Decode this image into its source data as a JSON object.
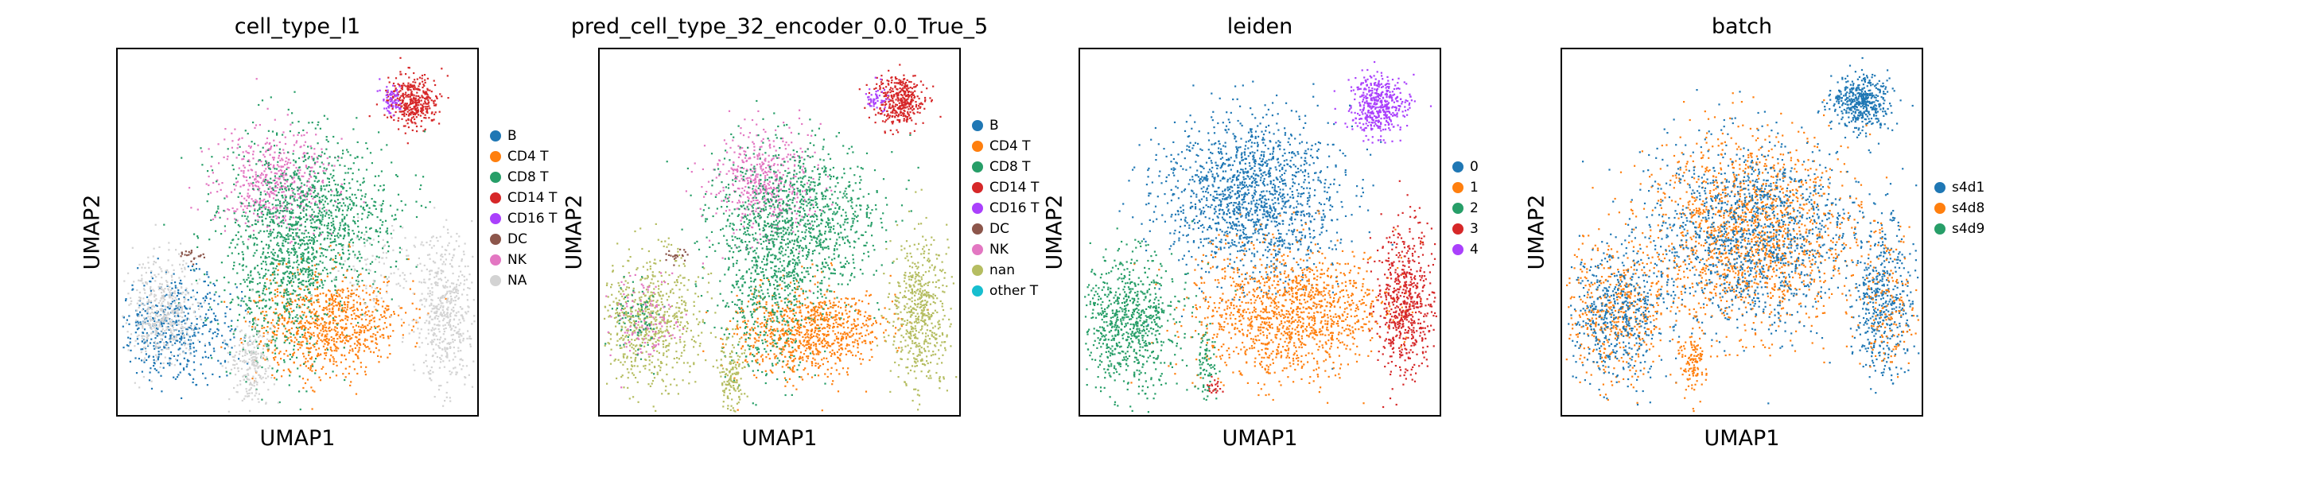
{
  "chart_data": [
    {
      "type": "scatter",
      "title": "cell_type_l1",
      "xlabel": "UMAP1",
      "ylabel": "UMAP2",
      "legend_position": "right",
      "categories": [
        {
          "name": "B",
          "color": "#1f77b4"
        },
        {
          "name": "CD4 T",
          "color": "#ff7f0e"
        },
        {
          "name": "CD8 T",
          "color": "#279e68"
        },
        {
          "name": "CD14 T",
          "color": "#d62728"
        },
        {
          "name": "CD16 T",
          "color": "#aa40fc"
        },
        {
          "name": "DC",
          "color": "#8c564b"
        },
        {
          "name": "NK",
          "color": "#e377c2"
        },
        {
          "name": "NA",
          "color": "#d3d3d3"
        }
      ]
    },
    {
      "type": "scatter",
      "title": "pred_cell_type_32_encoder_0.0_True_5",
      "xlabel": "UMAP1",
      "ylabel": "UMAP2",
      "legend_position": "right",
      "categories": [
        {
          "name": "B",
          "color": "#1f77b4"
        },
        {
          "name": "CD4 T",
          "color": "#ff7f0e"
        },
        {
          "name": "CD8 T",
          "color": "#279e68"
        },
        {
          "name": "CD14 T",
          "color": "#d62728"
        },
        {
          "name": "CD16 T",
          "color": "#aa40fc"
        },
        {
          "name": "DC",
          "color": "#8c564b"
        },
        {
          "name": "NK",
          "color": "#e377c2"
        },
        {
          "name": "nan",
          "color": "#b5bd61"
        },
        {
          "name": "other T",
          "color": "#17becf"
        }
      ]
    },
    {
      "type": "scatter",
      "title": "leiden",
      "xlabel": "UMAP1",
      "ylabel": "UMAP2",
      "legend_position": "right",
      "categories": [
        {
          "name": "0",
          "color": "#1f77b4"
        },
        {
          "name": "1",
          "color": "#ff7f0e"
        },
        {
          "name": "2",
          "color": "#279e68"
        },
        {
          "name": "3",
          "color": "#d62728"
        },
        {
          "name": "4",
          "color": "#aa40fc"
        }
      ]
    },
    {
      "type": "scatter",
      "title": "batch",
      "xlabel": "UMAP1",
      "ylabel": "UMAP2",
      "legend_position": "right",
      "categories": [
        {
          "name": "s4d1",
          "color": "#1f77b4"
        },
        {
          "name": "s4d8",
          "color": "#ff7f0e"
        },
        {
          "name": "s4d9",
          "color": "#279e68"
        }
      ]
    }
  ]
}
